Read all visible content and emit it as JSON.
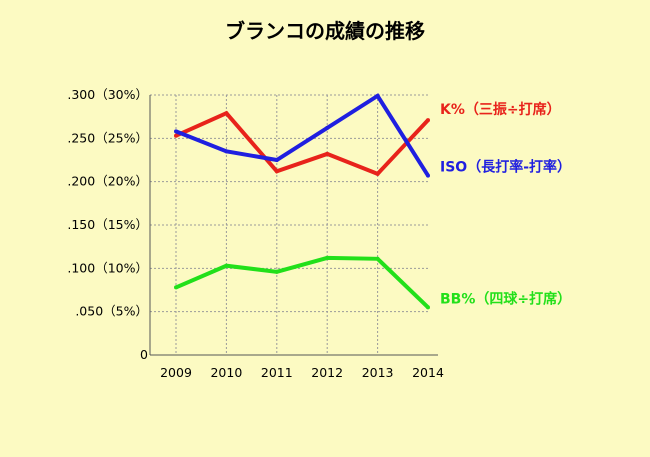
{
  "chart_data": {
    "type": "line",
    "title": "ブランコの成績の推移",
    "categories": [
      "2009",
      "2010",
      "2011",
      "2012",
      "2013",
      "2014"
    ],
    "y_ticks": [
      {
        "value": 0,
        "label": "0"
      },
      {
        "value": 0.05,
        "label": ".050（5%）"
      },
      {
        "value": 0.1,
        "label": ".100（10%）"
      },
      {
        "value": 0.15,
        "label": ".150（15%）"
      },
      {
        "value": 0.2,
        "label": ".200（20%）"
      },
      {
        "value": 0.25,
        "label": ".250（25%）"
      },
      {
        "value": 0.3,
        "label": ".300（30%）"
      }
    ],
    "ylim": [
      0,
      0.3
    ],
    "grid": true,
    "legend_placement": "right, beside line ends",
    "series": [
      {
        "name": "K%（三振÷打席）",
        "color": "#e8231b",
        "values": [
          0.253,
          0.279,
          0.212,
          0.232,
          0.209,
          0.271
        ]
      },
      {
        "name": "ISO（長打率-打率）",
        "color": "#1f1fe0",
        "values": [
          0.258,
          0.235,
          0.225,
          0.262,
          0.299,
          0.207
        ]
      },
      {
        "name": "BB%（四球÷打席）",
        "color": "#22e01a",
        "values": [
          0.078,
          0.103,
          0.096,
          0.112,
          0.111,
          0.055
        ]
      }
    ]
  }
}
